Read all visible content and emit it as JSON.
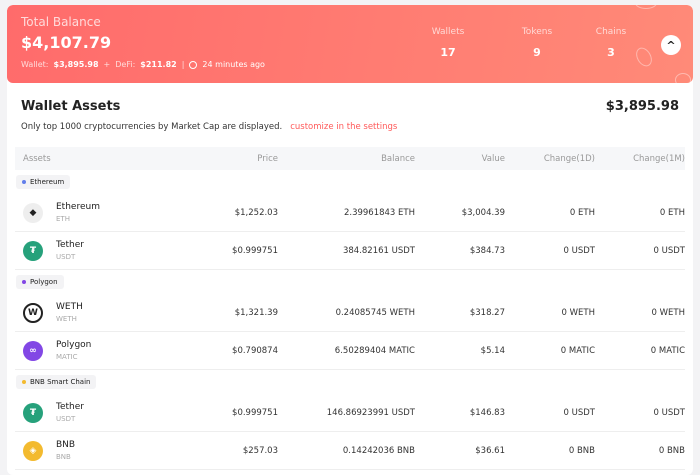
{
  "header": {
    "title": "Total Balance",
    "total": "$4,107.79",
    "wallet_label": "Wallet:",
    "wallet_value": "$3,895.98",
    "plus": "+",
    "defi_label": "DeFi:",
    "defi_value": "$211.82",
    "sep": "|",
    "updated": "24 minutes ago",
    "stats": [
      {
        "label": "Wallets",
        "value": "17"
      },
      {
        "label": "Tokens",
        "value": "9"
      },
      {
        "label": "Chains",
        "value": "3"
      }
    ],
    "collapse_icon": "chevron-up-icon"
  },
  "accent": "#ff6b6b",
  "assets": {
    "title": "Wallet Assets",
    "total": "$3,895.98",
    "note": "Only top 1000 cryptocurrencies by Market Cap are displayed.",
    "link": "customize in the settings",
    "columns": [
      "Assets",
      "Price",
      "Balance",
      "Value",
      "Change(1D)",
      "Change(1M)"
    ],
    "groups": [
      {
        "chain": "Ethereum",
        "color": "#627eea",
        "rows": [
          {
            "name": "Ethereum",
            "symbol": "ETH",
            "icon": "ethereum-icon",
            "price": "$1,252.03",
            "balance": "2.39961843 ETH",
            "value": "$3,004.39",
            "c1d": "0 ETH",
            "c1m": "0 ETH"
          },
          {
            "name": "Tether",
            "symbol": "USDT",
            "icon": "tether-icon",
            "price": "$0.999751",
            "balance": "384.82161 USDT",
            "value": "$384.73",
            "c1d": "0 USDT",
            "c1m": "0 USDT"
          }
        ]
      },
      {
        "chain": "Polygon",
        "color": "#8247e5",
        "rows": [
          {
            "name": "WETH",
            "symbol": "WETH",
            "icon": "weth-icon",
            "price": "$1,321.39",
            "balance": "0.24085745 WETH",
            "value": "$318.27",
            "c1d": "0 WETH",
            "c1m": "0 WETH"
          },
          {
            "name": "Polygon",
            "symbol": "MATIC",
            "icon": "polygon-icon",
            "price": "$0.790874",
            "balance": "6.50289404 MATIC",
            "value": "$5.14",
            "c1d": "0 MATIC",
            "c1m": "0 MATIC"
          }
        ]
      },
      {
        "chain": "BNB Smart Chain",
        "color": "#f3ba2f",
        "rows": [
          {
            "name": "Tether",
            "symbol": "USDT",
            "icon": "tether-icon",
            "price": "$0.999751",
            "balance": "146.86923991 USDT",
            "value": "$146.83",
            "c1d": "0 USDT",
            "c1m": "0 USDT"
          },
          {
            "name": "BNB",
            "symbol": "BNB",
            "icon": "bnb-icon",
            "price": "$257.03",
            "balance": "0.14242036 BNB",
            "value": "$36.61",
            "c1d": "0 BNB",
            "c1m": "0 BNB"
          }
        ]
      }
    ]
  }
}
